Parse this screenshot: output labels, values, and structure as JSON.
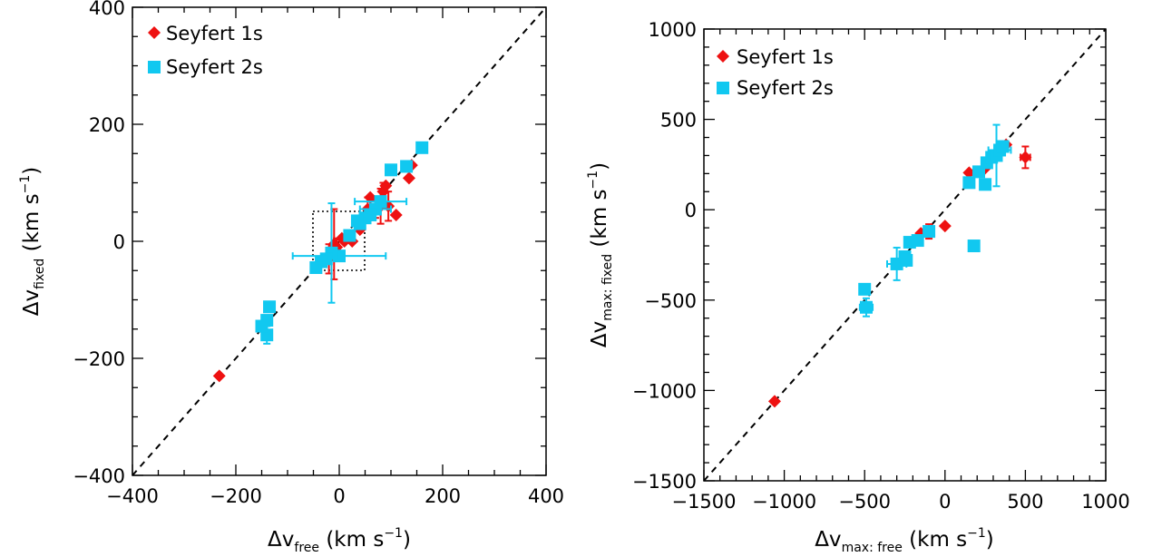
{
  "chart_data": [
    {
      "type": "scatter",
      "xlabel": {
        "prefix": "Δv",
        "sub": "free",
        "units": " (km s",
        "sup": "−1",
        "close": ")"
      },
      "ylabel": {
        "prefix": "Δv",
        "sub": "fixed",
        "units": " (km s",
        "sup": "−1",
        "close": ")"
      },
      "xlim": [
        -400,
        400
      ],
      "ylim": [
        -400,
        400
      ],
      "xticks": [
        -400,
        -200,
        0,
        200,
        400
      ],
      "yticks": [
        -400,
        -200,
        0,
        200,
        400
      ],
      "xtick_labels": [
        "−400",
        "−200",
        "0",
        "200",
        "400"
      ],
      "ytick_labels": [
        "−400",
        "−200",
        "0",
        "200",
        "400"
      ],
      "legend": {
        "placement": "top-left",
        "entries": [
          "Seyfert 1s",
          "Seyfert 2s"
        ]
      },
      "diagonal": true,
      "zoom_box": {
        "x": [
          -50,
          50
        ],
        "y": [
          -50,
          50
        ]
      },
      "colors": {
        "Seyfert 1s": "#ee1111",
        "Seyfert 2s": "#11c8f0"
      },
      "series": [
        {
          "name": "Seyfert 1s",
          "marker": "diamond",
          "points": [
            {
              "x": -232,
              "y": -230
            },
            {
              "x": -20,
              "y": -30,
              "yerr": 25
            },
            {
              "x": -10,
              "y": -5,
              "yerr": 60
            },
            {
              "x": -5,
              "y": -10,
              "yerr": 15
            },
            {
              "x": 5,
              "y": 5
            },
            {
              "x": 10,
              "y": 0
            },
            {
              "x": 25,
              "y": 0
            },
            {
              "x": 40,
              "y": 20
            },
            {
              "x": 55,
              "y": 55,
              "yerr": 20
            },
            {
              "x": 60,
              "y": 75
            },
            {
              "x": 70,
              "y": 55,
              "yerr": 15
            },
            {
              "x": 80,
              "y": 60,
              "yerr": 30
            },
            {
              "x": 85,
              "y": 85,
              "yerr": 15
            },
            {
              "x": 90,
              "y": 95
            },
            {
              "x": 95,
              "y": 60,
              "yerr": 25
            },
            {
              "x": 110,
              "y": 45
            },
            {
              "x": 135,
              "y": 108
            },
            {
              "x": 140,
              "y": 130
            }
          ]
        },
        {
          "name": "Seyfert 2s",
          "marker": "square",
          "points": [
            {
              "x": 160,
              "y": 160
            },
            {
              "x": 130,
              "y": 128
            },
            {
              "x": 100,
              "y": 122
            },
            {
              "x": 80,
              "y": 68,
              "xerr": 50
            },
            {
              "x": 70,
              "y": 55,
              "xerr": 30
            },
            {
              "x": 60,
              "y": 45
            },
            {
              "x": 50,
              "y": 40
            },
            {
              "x": 40,
              "y": 30
            },
            {
              "x": 35,
              "y": 35
            },
            {
              "x": 20,
              "y": 10
            },
            {
              "x": 0,
              "y": -25,
              "xerr": 90
            },
            {
              "x": -15,
              "y": -20,
              "yerr": 85
            },
            {
              "x": -25,
              "y": -30
            },
            {
              "x": -35,
              "y": -35
            },
            {
              "x": -45,
              "y": -45
            },
            {
              "x": -135,
              "y": -112
            },
            {
              "x": -140,
              "y": -135
            },
            {
              "x": -140,
              "y": -160,
              "yerr": 15
            },
            {
              "x": -150,
              "y": -145
            }
          ]
        }
      ]
    },
    {
      "type": "scatter",
      "xlabel": {
        "prefix": "Δv",
        "sub": "max: free",
        "units": " (km s",
        "sup": "−1",
        "close": ")"
      },
      "ylabel": {
        "prefix": "Δv",
        "sub": "max: fixed",
        "units": " (km s",
        "sup": "−1",
        "close": ")"
      },
      "xlim": [
        -1500,
        1000
      ],
      "ylim": [
        -1500,
        1000
      ],
      "xticks": [
        -1500,
        -1000,
        -500,
        0,
        500,
        1000
      ],
      "yticks": [
        -1500,
        -1000,
        -500,
        0,
        500,
        1000
      ],
      "xtick_labels": [
        "−1500",
        "−1000",
        "−500",
        "0",
        "500",
        "1000"
      ],
      "ytick_labels": [
        "−1500",
        "−1000",
        "−500",
        "0",
        "500",
        "1000"
      ],
      "legend": {
        "placement": "top-left",
        "entries": [
          "Seyfert 1s",
          "Seyfert 2s"
        ]
      },
      "diagonal": true,
      "colors": {
        "Seyfert 1s": "#ee1111",
        "Seyfert 2s": "#11c8f0"
      },
      "series": [
        {
          "name": "Seyfert 1s",
          "marker": "diamond",
          "points": [
            {
              "x": -1060,
              "y": -1060
            },
            {
              "x": -150,
              "y": -130
            },
            {
              "x": -100,
              "y": -120,
              "yerr": 40
            },
            {
              "x": 0,
              "y": -90
            },
            {
              "x": 150,
              "y": 205
            },
            {
              "x": 200,
              "y": 210
            },
            {
              "x": 250,
              "y": 230
            },
            {
              "x": 300,
              "y": 300
            },
            {
              "x": 350,
              "y": 350
            },
            {
              "x": 380,
              "y": 360
            },
            {
              "x": 500,
              "y": 290,
              "yerr": 60,
              "xerr": 30
            }
          ]
        },
        {
          "name": "Seyfert 2s",
          "marker": "square",
          "points": [
            {
              "x": -500,
              "y": -440
            },
            {
              "x": -490,
              "y": -540,
              "xerr": 40,
              "yerr": 50
            },
            {
              "x": -300,
              "y": -300,
              "xerr": 60,
              "yerr": 90
            },
            {
              "x": -250,
              "y": -260
            },
            {
              "x": -240,
              "y": -280
            },
            {
              "x": -220,
              "y": -180
            },
            {
              "x": -170,
              "y": -170
            },
            {
              "x": -100,
              "y": -120
            },
            {
              "x": 150,
              "y": 150
            },
            {
              "x": 180,
              "y": -200
            },
            {
              "x": 210,
              "y": 210
            },
            {
              "x": 250,
              "y": 140
            },
            {
              "x": 260,
              "y": 260
            },
            {
              "x": 290,
              "y": 290
            },
            {
              "x": 320,
              "y": 300,
              "yerr": 170
            },
            {
              "x": 340,
              "y": 330,
              "xerr": 70
            },
            {
              "x": 360,
              "y": 350
            }
          ]
        }
      ]
    }
  ]
}
